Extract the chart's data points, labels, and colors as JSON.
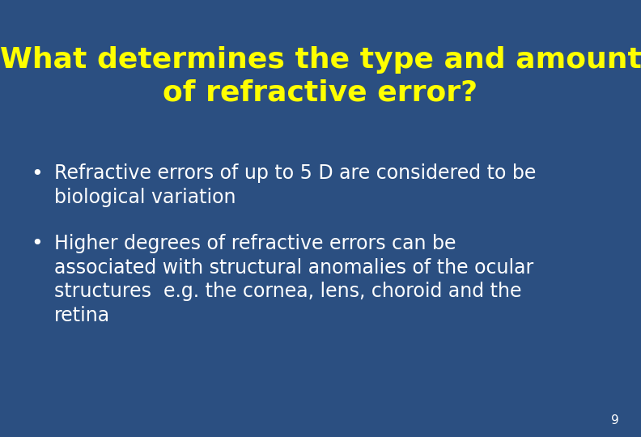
{
  "background_color": "#2B4F81",
  "title_line1": "What determines the type and amount",
  "title_line2": "of refractive error?",
  "title_color": "#FFFF00",
  "title_fontsize": 26,
  "title_fontweight": "bold",
  "bullet_color": "#FFFFFF",
  "bullet_fontsize": 17,
  "bullet1_line1": "Refractive errors of up to 5 D are considered to be",
  "bullet1_line2": "biological variation",
  "bullet2_line1": "Higher degrees of refractive errors can be",
  "bullet2_line2": "associated with structural anomalies of the ocular",
  "bullet2_line3": "structures  e.g. the cornea, lens, choroid and the",
  "bullet2_line4": "retina",
  "page_number": "9",
  "page_number_color": "#FFFFFF",
  "page_number_fontsize": 11,
  "fig_width": 7.92,
  "fig_height": 5.4,
  "dpi": 100
}
